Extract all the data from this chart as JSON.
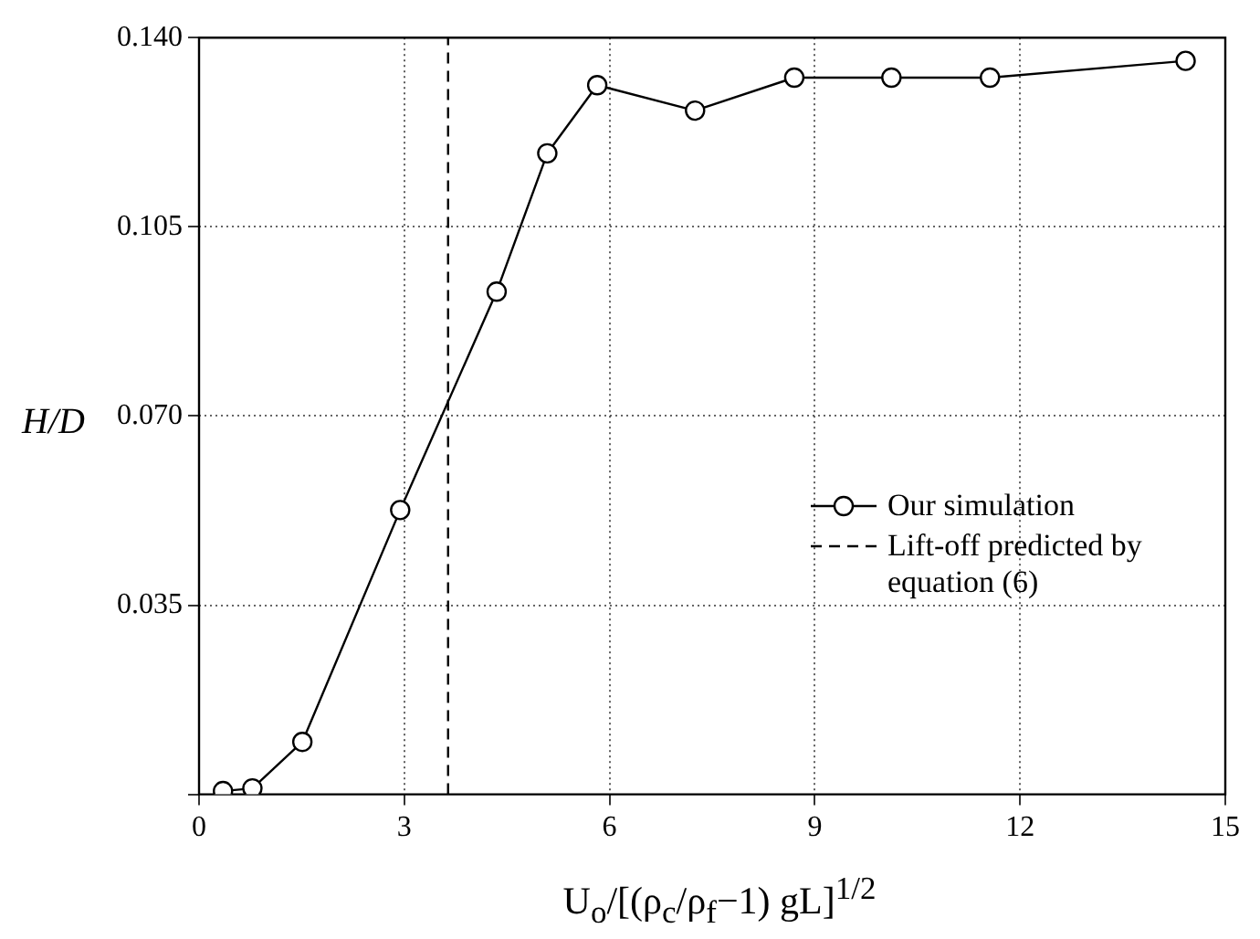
{
  "chart_data": {
    "type": "line",
    "xlabel": "U$_{o}$/[(ρ$_{c}$/ρ$_{f}$−1) gL]$^{1/2}$",
    "ylabel": "H/D",
    "x": [
      0.35,
      0.78,
      1.51,
      2.94,
      4.35,
      5.09,
      5.82,
      7.25,
      8.7,
      10.12,
      11.56,
      14.42
    ],
    "series": [
      {
        "name": "Our simulation",
        "color": "#000000",
        "values": [
          0.0006,
          0.0011,
          0.0097,
          0.0526,
          0.093,
          0.1186,
          0.1312,
          0.1265,
          0.1326,
          0.1326,
          0.1326,
          0.1357
        ]
      },
      {
        "name": "Lift-off predicted by equation (6)",
        "color": "#000000",
        "x": [
          3.64,
          3.64
        ],
        "values": [
          0,
          0.14
        ],
        "line_style": "dashed",
        "marker": "none"
      }
    ],
    "xlim": [
      0,
      15
    ],
    "xticks": [
      0,
      3,
      6,
      9,
      12,
      15
    ],
    "ylim": [
      0,
      0.14
    ],
    "yticks": [
      {
        "value": 0,
        "label": null
      },
      0.035,
      {
        "value": 0.07,
        "label": "0.070"
      },
      0.105,
      {
        "value": 0.14,
        "label": "0.140"
      }
    ],
    "grid": true,
    "legend": "right",
    "marker": "circle",
    "line_style": "solid"
  }
}
